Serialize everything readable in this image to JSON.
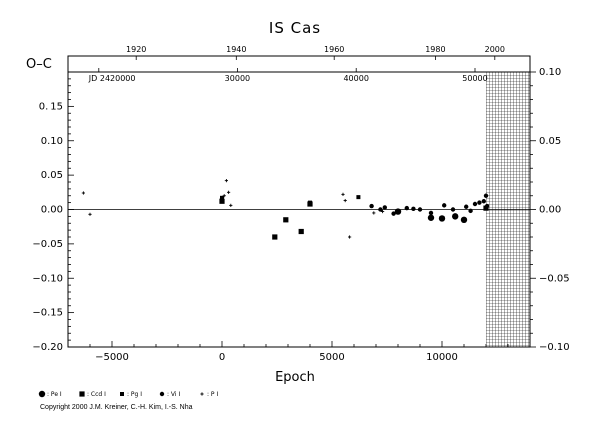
{
  "chart_data": {
    "type": "scatter",
    "title": "IS Cas",
    "xlabel": "Epoch",
    "ylabel": "O–C",
    "xlim": [
      -7000,
      14000
    ],
    "ylim": [
      -0.2,
      0.2
    ],
    "right_ylim": [
      -0.1,
      0.1
    ],
    "x_ticks": [
      -5000,
      0,
      5000,
      10000
    ],
    "x_tick_labels": [
      "−5000",
      "0",
      "5000",
      "10000"
    ],
    "y_ticks": [
      -0.2,
      -0.15,
      -0.1,
      -0.05,
      0.0,
      0.05,
      0.1,
      0.15
    ],
    "y_tick_labels": [
      "−0.20",
      "−0.15",
      "−0.10",
      "−0.05",
      "0.00",
      "0.05",
      "0.10",
      "0.15"
    ],
    "y_top_label": "0. 15",
    "right_y_ticks": [
      -0.1,
      -0.05,
      0.0,
      0.05,
      0.1
    ],
    "right_y_tick_labels": [
      "−0.10",
      "−0.05",
      "0.00",
      "0.05",
      "0.10"
    ],
    "top_year_ticks": [
      1920,
      1940,
      1960,
      1980,
      2000
    ],
    "top_year_tick_epochs": [
      -3900,
      650,
      5100,
      9700,
      12400
    ],
    "jd_ticks": [
      "JD 2420000",
      "30000",
      "40000",
      "50000"
    ],
    "jd_tick_epochs": [
      -5600,
      700,
      6100,
      11500
    ],
    "future_region_start": 12400,
    "series": [
      {
        "name": "Pe I",
        "marker": "circle-large",
        "x": [
          8000,
          9500,
          10000,
          10600,
          11000
        ],
        "y": [
          -0.003,
          -0.012,
          -0.013,
          -0.01,
          -0.015
        ]
      },
      {
        "name": "Ccd I",
        "marker": "square",
        "x": [
          2400,
          2900,
          3600,
          0,
          4000,
          12000
        ],
        "y": [
          -0.04,
          -0.015,
          -0.032,
          0.012,
          0.008,
          0.002
        ]
      },
      {
        "name": "Pg I",
        "marker": "square-small",
        "x": [
          0,
          4000,
          6200
        ],
        "y": [
          0.017,
          0.01,
          0.018
        ]
      },
      {
        "name": "Vi I",
        "marker": "circle",
        "x": [
          6800,
          7200,
          7400,
          7800,
          8400,
          8700,
          9000,
          9500,
          10100,
          10500,
          11100,
          11300,
          11500,
          11700,
          11900,
          12000,
          12050
        ],
        "y": [
          0.005,
          0.0,
          0.003,
          -0.006,
          0.002,
          0.001,
          0.0,
          -0.005,
          0.006,
          0.0,
          0.004,
          -0.002,
          0.008,
          0.01,
          0.012,
          0.02,
          0.005
        ]
      },
      {
        "name": "P I",
        "marker": "plus",
        "x": [
          -6300,
          -6000,
          100,
          200,
          300,
          400,
          5500,
          5600,
          5800,
          6900,
          7300
        ],
        "y": [
          0.024,
          -0.007,
          0.02,
          0.042,
          0.025,
          0.006,
          0.022,
          0.013,
          -0.04,
          -0.005,
          -0.003
        ]
      }
    ]
  },
  "legend": [
    {
      "marker": "circle-large",
      "label": ": Pe I"
    },
    {
      "marker": "square",
      "label": ": Ccd I"
    },
    {
      "marker": "square-small",
      "label": ": Pg I"
    },
    {
      "marker": "circle",
      "label": ": Vi I"
    },
    {
      "marker": "plus",
      "label": ": P I"
    }
  ],
  "copyright": "Copyright 2000 J.M. Kreiner, C.-H. Kim, I.-S. Nha"
}
